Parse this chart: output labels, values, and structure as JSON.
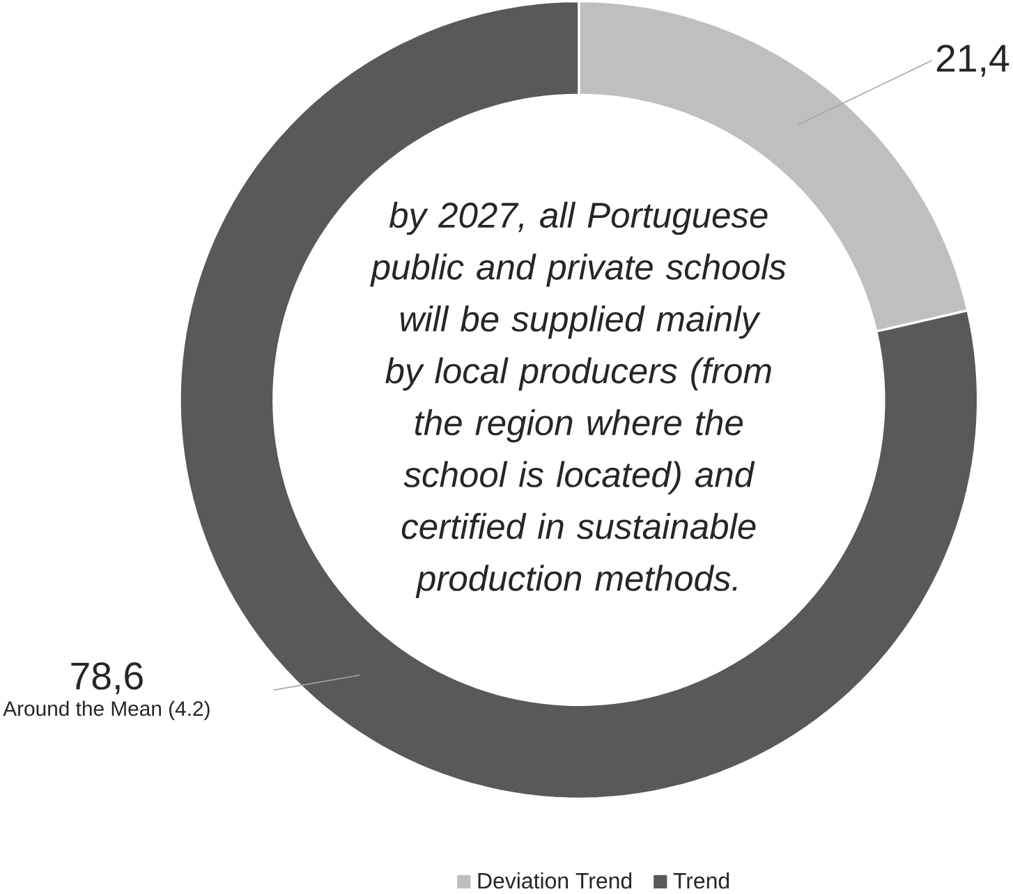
{
  "chart_data": {
    "type": "donut",
    "categories": [
      "Deviation Trend",
      "Trend"
    ],
    "values": [
      21.4,
      78.6
    ],
    "colors": [
      "#bfbfbf",
      "#595959"
    ],
    "value_labels": [
      "21,4",
      "78,6"
    ],
    "annotations": [
      "by 2027, all Portuguese public and private schools will be supplied mainly by local producers (from the region where the school is located) and certified in sustainable production methods.",
      "Around  the Mean (4.2)"
    ],
    "legend": "bottom"
  }
}
